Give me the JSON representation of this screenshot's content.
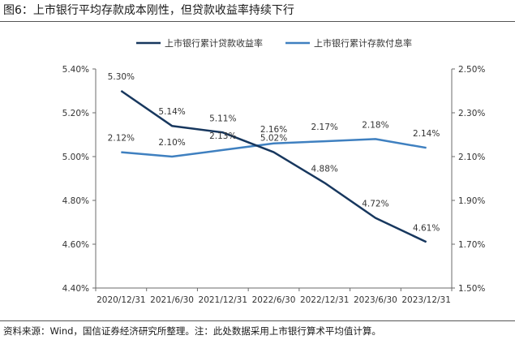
{
  "title": "图6：上市银行平均存款成本刚性，但贷款收益率持续下行",
  "source": "资料来源：Wind，国信证券经济研究所整理。注：此处数据采用上市银行算术平均值计算。",
  "colors": {
    "loan": "#17375e",
    "deposit": "#3f80c0",
    "axis": "#6b6b6b",
    "text": "#333333"
  },
  "chart_data": {
    "type": "line",
    "categories": [
      "2020/12/31",
      "2021/6/30",
      "2021/12/31",
      "2022/6/30",
      "2022/12/31",
      "2023/6/30",
      "2023/12/31"
    ],
    "legend_position": "top",
    "grid": false,
    "series": [
      {
        "name": "上市银行累计贷款收益率",
        "axis": "left",
        "values": [
          5.3,
          5.14,
          5.11,
          5.02,
          4.88,
          4.72,
          4.61
        ],
        "labels": [
          "5.30%",
          "5.14%",
          "5.11%",
          "5.02%",
          "4.88%",
          "4.72%",
          "4.61%"
        ]
      },
      {
        "name": "上市银行累计存款付息率",
        "axis": "right",
        "values": [
          2.12,
          2.1,
          2.13,
          2.16,
          2.17,
          2.18,
          2.14
        ],
        "labels": [
          "2.12%",
          "2.10%",
          "2.13%",
          "2.16%",
          "2.17%",
          "2.18%",
          "2.14%"
        ]
      }
    ],
    "y_left": {
      "min": 4.4,
      "max": 5.4,
      "ticks": [
        4.4,
        4.6,
        4.8,
        5.0,
        5.2,
        5.4
      ],
      "tick_labels": [
        "4.40%",
        "4.60%",
        "4.80%",
        "5.00%",
        "5.20%",
        "5.40%"
      ]
    },
    "y_right": {
      "min": 1.5,
      "max": 2.5,
      "ticks": [
        1.5,
        1.7,
        1.9,
        2.1,
        2.3,
        2.5
      ],
      "tick_labels": [
        "1.50%",
        "1.70%",
        "1.90%",
        "2.10%",
        "2.30%",
        "2.50%"
      ]
    }
  }
}
